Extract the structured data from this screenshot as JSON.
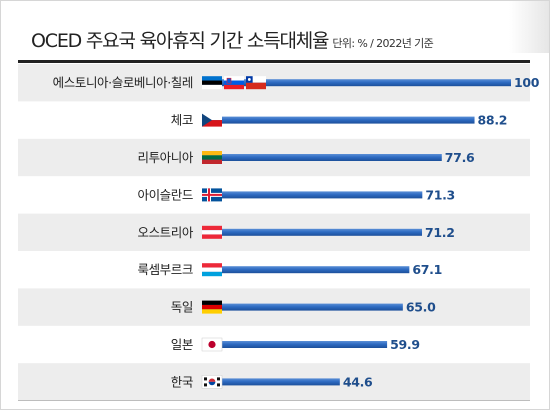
{
  "header": {
    "title": "OCED 주요국 육아휴직 기간 소득대체율",
    "unit_note": "단위: % / 2022년 기준"
  },
  "colors": {
    "bar_top": "#5b8fd6",
    "bar_mid": "#2e6bc2",
    "bar_bottom": "#1c4f9a",
    "value_text": "#1f4e8c",
    "row_shade": "#ededed",
    "label_text": "#222222"
  },
  "chart_data": {
    "type": "bar",
    "orientation": "horizontal",
    "categories": [
      "에스토니아·슬로베니아·칠레",
      "체코",
      "리투아니아",
      "아이슬란드",
      "오스트리아",
      "룩셈부르크",
      "독일",
      "일본",
      "한국"
    ],
    "values": [
      100,
      88.2,
      77.6,
      71.3,
      71.2,
      67.1,
      65.0,
      59.9,
      44.6
    ],
    "value_labels": [
      "100",
      "88.2",
      "77.6",
      "71.3",
      "71.2",
      "67.1",
      "65.0",
      "59.9",
      "44.6"
    ],
    "flags": [
      [
        "estonia-flag-icon",
        "slovenia-flag-icon",
        "chile-flag-icon"
      ],
      [
        "czech-flag-icon"
      ],
      [
        "lithuania-flag-icon"
      ],
      [
        "iceland-flag-icon"
      ],
      [
        "austria-flag-icon"
      ],
      [
        "luxembourg-flag-icon"
      ],
      [
        "germany-flag-icon"
      ],
      [
        "japan-flag-icon"
      ],
      [
        "korea-flag-icon"
      ]
    ],
    "xlim": [
      0,
      100
    ],
    "grid": false,
    "row_shading": "alternating"
  }
}
